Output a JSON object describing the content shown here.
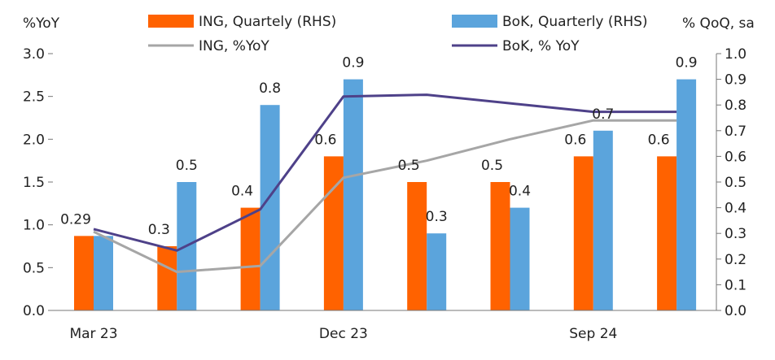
{
  "chart_data": {
    "type": "bar",
    "categories": [
      "Mar 23",
      "",
      "",
      "Dec 23",
      "",
      "",
      "Sep 24",
      ""
    ],
    "left_axis": {
      "label": "%YoY",
      "ylim": [
        0,
        3.0
      ],
      "ticks": [
        "0.0",
        "0.5",
        "1.0",
        "1.5",
        "2.0",
        "2.5",
        "3.0"
      ],
      "tick_values": [
        0,
        0.5,
        1.0,
        1.5,
        2.0,
        2.5,
        3.0
      ]
    },
    "right_axis": {
      "label": "% QoQ, sa",
      "ylim": [
        0,
        1.0
      ],
      "ticks": [
        "0.0",
        "0.1",
        "0.2",
        "0.3",
        "0.4",
        "0.5",
        "0.6",
        "0.7",
        "0.8",
        "0.9",
        "1.0"
      ],
      "tick_values": [
        0,
        0.1,
        0.2,
        0.3,
        0.4,
        0.5,
        0.6,
        0.7,
        0.8,
        0.9,
        1.0
      ]
    },
    "bar_series": [
      {
        "name": "ING, Quartely (RHS)",
        "color": "#ff6200",
        "axis": "right",
        "values": [
          0.29,
          0.25,
          0.4,
          0.6,
          0.5,
          0.5,
          0.6,
          0.6
        ],
        "labels": [
          "0.29",
          "0.3",
          "0.4",
          "0.6",
          "0.5",
          "0.5",
          "0.6",
          "0.6"
        ]
      },
      {
        "name": "BoK, Quarterly (RHS)",
        "color": "#5ba4dc",
        "axis": "right",
        "values": [
          0.29,
          0.5,
          0.8,
          0.9,
          0.3,
          0.4,
          0.7,
          0.9
        ],
        "labels": [
          "",
          "0.5",
          "0.8",
          "0.9",
          "0.3",
          "0.4",
          "0.7",
          "0.9"
        ]
      }
    ],
    "line_series": [
      {
        "name": "ING, %YoY",
        "color": "#a6a6a6",
        "axis": "left",
        "values": [
          0.92,
          0.45,
          0.52,
          1.55,
          1.75,
          2.0,
          2.22,
          2.22
        ]
      },
      {
        "name": "BoK, % YoY",
        "color": "#4e4189",
        "axis": "left",
        "values": [
          0.95,
          0.7,
          1.18,
          2.5,
          2.52,
          2.42,
          2.32,
          2.32
        ]
      }
    ],
    "grid": false,
    "legend_position": "top"
  }
}
